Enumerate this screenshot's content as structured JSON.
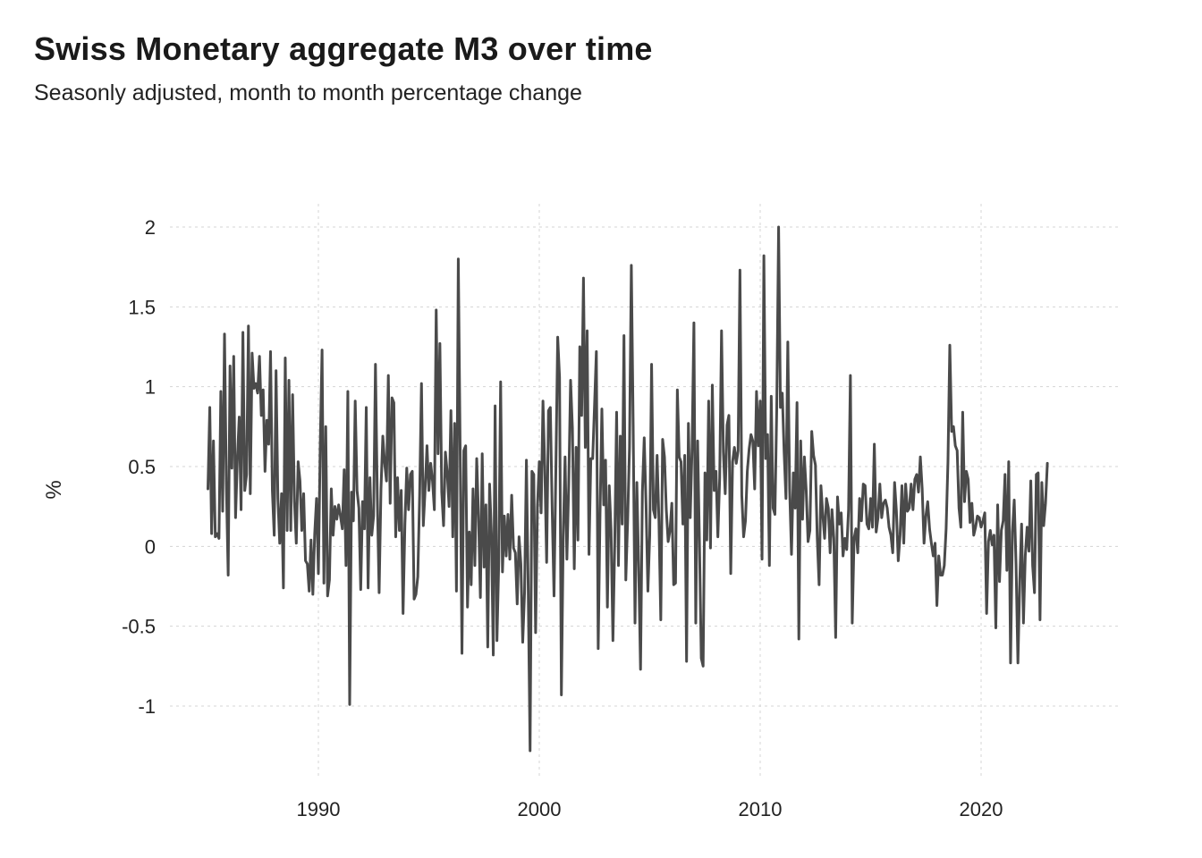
{
  "chart_data": {
    "type": "line",
    "title": "Swiss Monetary aggregate M3 over time",
    "subtitle": "Seasonly adjusted, month to month percentage change",
    "xlabel": "",
    "ylabel": "%",
    "xlim": [
      1984.7,
      2026.3
    ],
    "ylim": [
      -1.45,
      2.12
    ],
    "x_ticks": [
      1990,
      2000,
      2010,
      2020
    ],
    "x_tick_labels": [
      "1990",
      "2000",
      "2010",
      "2020"
    ],
    "y_ticks": [
      -1,
      -0.5,
      0,
      0.5,
      1,
      1.5,
      2
    ],
    "y_tick_labels": [
      "-1",
      "-0.5",
      "0",
      "0.5",
      "1",
      "1.5",
      "2"
    ],
    "grid": true,
    "legend": "none",
    "line_color": "#4a4a4a",
    "x_start": 1985.0,
    "x_step": 0.0833333,
    "series": [
      {
        "values": [
          0.36,
          0.87,
          0.08,
          0.66,
          0.06,
          0.08,
          0.05,
          0.97,
          0.22,
          1.33,
          0.39,
          -0.18,
          1.13,
          0.49,
          1.19,
          0.18,
          0.55,
          0.81,
          0.23,
          1.34,
          0.35,
          0.45,
          1.38,
          0.33,
          1.21,
          0.99,
          1.02,
          0.96,
          1.19,
          0.82,
          0.98,
          0.47,
          0.79,
          0.64,
          1.22,
          0.35,
          0.07,
          1.1,
          0.3,
          0.02,
          0.33,
          -0.26,
          1.18,
          0.1,
          1.04,
          0.1,
          0.95,
          0.28,
          0.02,
          0.53,
          0.41,
          0.1,
          0.33,
          -0.09,
          -0.11,
          -0.28,
          0.04,
          -0.3,
          0.08,
          0.3,
          -0.17,
          0.63,
          1.23,
          -0.23,
          0.75,
          -0.31,
          -0.21,
          0.36,
          0.07,
          0.25,
          0.17,
          0.26,
          0.19,
          0.11,
          0.48,
          -0.12,
          0.97,
          -0.99,
          0.34,
          0.16,
          0.91,
          0.35,
          0.24,
          -0.27,
          0.28,
          0.11,
          0.87,
          -0.26,
          0.43,
          0.07,
          0.19,
          1.14,
          0.31,
          -0.29,
          0.36,
          0.69,
          0.52,
          0.41,
          1.07,
          0.27,
          0.93,
          0.9,
          0.06,
          0.43,
          0.1,
          0.35,
          -0.42,
          0.14,
          0.49,
          0.23,
          0.45,
          0.47,
          -0.33,
          -0.3,
          -0.19,
          0.32,
          1.02,
          0.13,
          0.36,
          0.63,
          0.35,
          0.52,
          0.41,
          0.23,
          1.48,
          0.58,
          1.27,
          0.34,
          0.13,
          0.59,
          0.46,
          0.25,
          0.85,
          0.06,
          0.77,
          -0.28,
          1.8,
          0.62,
          -0.67,
          0.6,
          0.63,
          -0.38,
          0.09,
          -0.24,
          0.36,
          -0.12,
          0.55,
          0.19,
          -0.32,
          0.58,
          -0.13,
          0.26,
          -0.63,
          0.39,
          0.08,
          -0.68,
          0.88,
          -0.59,
          -0.09,
          1.03,
          -0.16,
          0.19,
          -0.06,
          0.2,
          -0.08,
          0.32,
          -0.01,
          -0.04,
          -0.36,
          0.06,
          -0.11,
          -0.6,
          -0.29,
          0.54,
          -0.28,
          -1.28,
          0.47,
          0.45,
          -0.54,
          0.25,
          0.53,
          0.21,
          0.91,
          0.49,
          -0.1,
          0.85,
          0.87,
          0.23,
          -0.31,
          0.48,
          1.31,
          1.06,
          -0.93,
          0.06,
          0.56,
          -0.08,
          0.39,
          1.04,
          0.74,
          -0.14,
          0.62,
          0.04,
          1.25,
          0.82,
          1.68,
          0.62,
          1.35,
          -0.05,
          0.55,
          0.55,
          0.88,
          1.22,
          -0.64,
          0.2,
          0.86,
          0.26,
          0.54,
          -0.38,
          0.38,
          0.1,
          -0.59,
          0.03,
          0.84,
          -0.12,
          0.69,
          0.14,
          1.32,
          -0.21,
          0.16,
          0.62,
          1.76,
          0.76,
          -0.48,
          0.4,
          -0.13,
          -0.77,
          0.34,
          0.68,
          0.26,
          -0.28,
          0.07,
          1.14,
          0.23,
          0.18,
          0.57,
          0.16,
          -0.46,
          0.67,
          0.56,
          0.23,
          0.03,
          0.1,
          0.27,
          -0.24,
          -0.23,
          0.98,
          0.56,
          0.53,
          0.14,
          0.57,
          -0.72,
          0.77,
          0.18,
          0.62,
          1.4,
          -0.48,
          0.66,
          0.03,
          -0.7,
          -0.75,
          0.46,
          0.04,
          0.91,
          -0.01,
          1.01,
          0.35,
          0.47,
          0.06,
          0.43,
          1.35,
          0.59,
          0.33,
          0.76,
          0.82,
          -0.17,
          0.53,
          0.62,
          0.52,
          0.6,
          1.73,
          0.32,
          0.06,
          0.16,
          0.47,
          0.61,
          0.7,
          0.66,
          0.36,
          0.97,
          0.63,
          0.91,
          -0.08,
          1.82,
          0.55,
          0.7,
          -0.12,
          0.94,
          0.24,
          0.2,
          0.87,
          2.0,
          0.87,
          0.96,
          0.59,
          0.3,
          1.28,
          0.36,
          -0.05,
          0.46,
          0.24,
          0.9,
          -0.58,
          0.66,
          0.17,
          0.56,
          0.35,
          0.03,
          0.1,
          0.72,
          0.57,
          0.51,
          0.05,
          -0.24,
          0.38,
          0.2,
          0.05,
          0.3,
          0.24,
          -0.04,
          0.23,
          0.05,
          -0.57,
          0.31,
          0.14,
          0.21,
          -0.06,
          0.05,
          -0.02,
          0.23,
          1.07,
          -0.48,
          0.05,
          0.11,
          -0.04,
          0.3,
          0.16,
          0.39,
          0.38,
          0.14,
          0.11,
          0.3,
          0.12,
          0.64,
          0.09,
          0.18,
          0.39,
          0.18,
          0.27,
          0.29,
          0.24,
          0.12,
          0.07,
          -0.04,
          0.4,
          0.22,
          -0.09,
          0.07,
          0.38,
          0.02,
          0.39,
          0.22,
          0.24,
          0.39,
          0.23,
          0.42,
          0.45,
          0.34,
          0.56,
          0.36,
          0.02,
          0.19,
          0.28,
          0.11,
          0.02,
          -0.06,
          0.02,
          -0.37,
          -0.06,
          -0.18,
          -0.18,
          -0.12,
          0.11,
          0.53,
          1.26,
          0.72,
          0.75,
          0.63,
          0.6,
          0.24,
          0.12,
          0.84,
          0.28,
          0.47,
          0.42,
          0.15,
          0.27,
          0.07,
          0.12,
          0.19,
          0.18,
          0.12,
          0.16,
          0.21,
          -0.42,
          0.03,
          0.1,
          0.01,
          0.07,
          -0.51,
          0.26,
          -0.22,
          0.1,
          0.16,
          0.45,
          -0.15,
          0.53,
          -0.73,
          0.09,
          0.29,
          -0.12,
          -0.73,
          -0.22,
          0.14,
          -0.48,
          -0.06,
          0.12,
          -0.03,
          0.41,
          -0.12,
          -0.29,
          0.45,
          0.46,
          -0.46,
          0.4,
          0.13,
          0.27,
          0.52
        ]
      }
    ]
  }
}
